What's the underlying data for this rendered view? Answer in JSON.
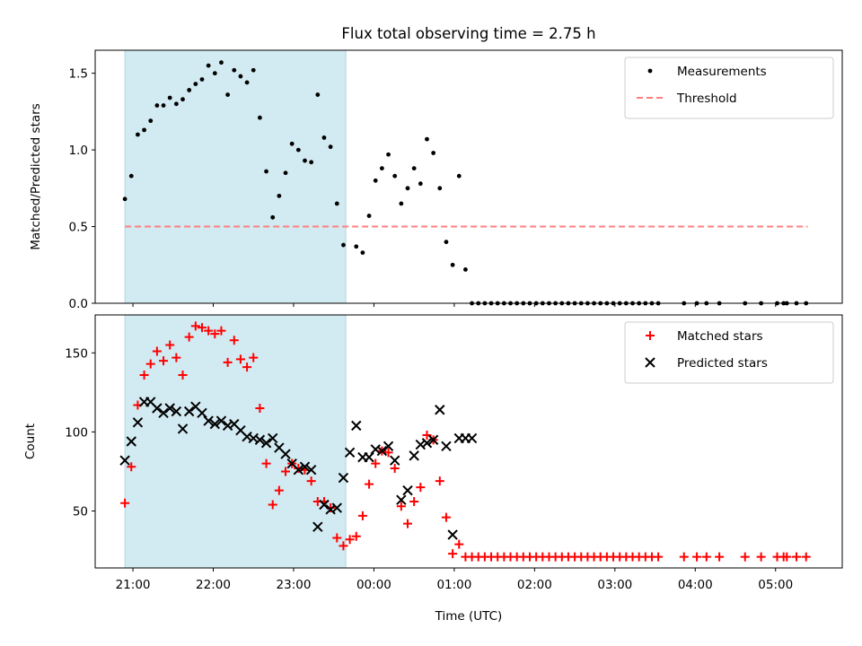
{
  "chart_data": {
    "title": "Flux total observing time = 2.75 h",
    "xlabel": "Time (UTC)",
    "shaded_interval_hours": [
      20.9,
      23.65
    ],
    "shade_color": "#add8e6",
    "x_ticks": [
      {
        "t": 21,
        "label": "21:00"
      },
      {
        "t": 22,
        "label": "22:00"
      },
      {
        "t": 23,
        "label": "23:00"
      },
      {
        "t": 24,
        "label": "00:00"
      },
      {
        "t": 25,
        "label": "01:00"
      },
      {
        "t": 26,
        "label": "02:00"
      },
      {
        "t": 27,
        "label": "03:00"
      },
      {
        "t": 28,
        "label": "04:00"
      },
      {
        "t": 29,
        "label": "05:00"
      }
    ],
    "x_range_hours": [
      20.53,
      29.83
    ],
    "panels": [
      {
        "type": "scatter",
        "ylabel": "Matched/Predicted stars",
        "ylim": [
          0,
          1.65
        ],
        "y_ticks": [
          {
            "v": 0,
            "label": "0.0"
          },
          {
            "v": 0.5,
            "label": "0.5"
          },
          {
            "v": 1.0,
            "label": "1.0"
          },
          {
            "v": 1.5,
            "label": "1.5"
          }
        ],
        "series": [
          {
            "name": "Measurements",
            "marker": "dot",
            "color": "#000000",
            "x": [
              20.9,
              20.98,
              21.06,
              21.14,
              21.22,
              21.3,
              21.38,
              21.46,
              21.54,
              21.62,
              21.7,
              21.78,
              21.86,
              21.94,
              22.02,
              22.1,
              22.18,
              22.26,
              22.34,
              22.42,
              22.5,
              22.58,
              22.66,
              22.74,
              22.82,
              22.9,
              22.98,
              23.06,
              23.14,
              23.22,
              23.3,
              23.38,
              23.46,
              23.54,
              23.62,
              23.78,
              23.86,
              23.94,
              24.02,
              24.1,
              24.18,
              24.26,
              24.34,
              24.42,
              24.5,
              24.58,
              24.66,
              24.74,
              24.82,
              24.9,
              24.98,
              25.06,
              25.14,
              25.22,
              25.3,
              25.38,
              25.46,
              25.54,
              25.62,
              25.7,
              25.78,
              25.86,
              25.94,
              26.02,
              26.1,
              26.18,
              26.26,
              26.34,
              26.42,
              26.5,
              26.58,
              26.66,
              26.74,
              26.82,
              26.9,
              26.98,
              27.06,
              27.14,
              27.22,
              27.3,
              27.38,
              27.46,
              27.54,
              27.86,
              28.02,
              28.14,
              28.3,
              28.62,
              28.82,
              29.02,
              29.1,
              29.14,
              29.26,
              29.38
            ],
            "y": [
              0.68,
              0.83,
              1.1,
              1.13,
              1.19,
              1.29,
              1.29,
              1.34,
              1.3,
              1.33,
              1.39,
              1.43,
              1.46,
              1.55,
              1.5,
              1.57,
              1.36,
              1.52,
              1.48,
              1.44,
              1.52,
              1.21,
              0.86,
              0.56,
              0.7,
              0.85,
              1.04,
              1.0,
              0.93,
              0.92,
              1.36,
              1.08,
              1.02,
              0.65,
              0.38,
              0.37,
              0.33,
              0.57,
              0.8,
              0.88,
              0.97,
              0.83,
              0.65,
              0.75,
              0.88,
              0.78,
              1.07,
              0.98,
              0.75,
              0.4,
              0.25,
              0.83,
              0.22,
              0,
              0,
              0,
              0,
              0,
              0,
              0,
              0,
              0,
              0,
              0,
              0,
              0,
              0,
              0,
              0,
              0,
              0,
              0,
              0,
              0,
              0,
              0,
              0,
              0,
              0,
              0,
              0,
              0,
              0,
              0,
              0,
              0,
              0,
              0,
              0,
              0,
              0,
              0,
              0,
              0
            ]
          },
          {
            "name": "Threshold",
            "marker": "dashed-line",
            "color": "#ff7f7f",
            "x": [
              20.9,
              29.4
            ],
            "y": [
              0.5,
              0.5
            ]
          }
        ]
      },
      {
        "type": "scatter",
        "ylabel": "Count",
        "ylim": [
          14,
          174
        ],
        "y_ticks": [
          {
            "v": 50,
            "label": "50"
          },
          {
            "v": 100,
            "label": "100"
          },
          {
            "v": 150,
            "label": "150"
          }
        ],
        "series": [
          {
            "name": "Matched stars",
            "marker": "plus",
            "color": "#ff0000",
            "x": [
              20.9,
              20.98,
              21.06,
              21.14,
              21.22,
              21.3,
              21.38,
              21.46,
              21.54,
              21.62,
              21.7,
              21.78,
              21.86,
              21.94,
              22.02,
              22.1,
              22.18,
              22.26,
              22.34,
              22.42,
              22.5,
              22.58,
              22.66,
              22.74,
              22.82,
              22.9,
              22.98,
              23.06,
              23.14,
              23.22,
              23.3,
              23.38,
              23.46,
              23.54,
              23.62,
              23.7,
              23.78,
              23.86,
              23.94,
              24.02,
              24.1,
              24.18,
              24.26,
              24.34,
              24.42,
              24.5,
              24.58,
              24.66,
              24.74,
              24.82,
              24.9,
              24.98,
              25.06,
              25.14,
              25.22,
              25.3,
              25.38,
              25.46,
              25.54,
              25.62,
              25.7,
              25.78,
              25.86,
              25.94,
              26.02,
              26.1,
              26.18,
              26.26,
              26.34,
              26.42,
              26.5,
              26.58,
              26.66,
              26.74,
              26.82,
              26.9,
              26.98,
              27.06,
              27.14,
              27.22,
              27.3,
              27.38,
              27.46,
              27.54,
              27.86,
              28.02,
              28.14,
              28.3,
              28.62,
              28.82,
              29.02,
              29.1,
              29.14,
              29.26,
              29.38
            ],
            "y": [
              55,
              78,
              117,
              136,
              143,
              151,
              145,
              155,
              147,
              136,
              160,
              167,
              166,
              164,
              162,
              164,
              144,
              158,
              146,
              141,
              147,
              115,
              80,
              54,
              63,
              75,
              80,
              77,
              76,
              69,
              56,
              56,
              52,
              33,
              28,
              32,
              34,
              47,
              67,
              80,
              88,
              87,
              77,
              53,
              42,
              56,
              65,
              98,
              95,
              69,
              46,
              23,
              29,
              21,
              21,
              21,
              21,
              21,
              21,
              21,
              21,
              21,
              21,
              21,
              21,
              21,
              21,
              21,
              21,
              21,
              21,
              21,
              21,
              21,
              21,
              21,
              21,
              21,
              21,
              21,
              21,
              21,
              21,
              21,
              21,
              21,
              21,
              21,
              21,
              21,
              21,
              21,
              21,
              21,
              21
            ]
          },
          {
            "name": "Predicted stars",
            "marker": "cross",
            "color": "#000000",
            "x": [
              20.9,
              20.98,
              21.06,
              21.14,
              21.22,
              21.3,
              21.38,
              21.46,
              21.54,
              21.62,
              21.7,
              21.78,
              21.86,
              21.94,
              22.02,
              22.1,
              22.18,
              22.26,
              22.34,
              22.42,
              22.5,
              22.58,
              22.66,
              22.74,
              22.82,
              22.9,
              22.98,
              23.06,
              23.14,
              23.22,
              23.3,
              23.38,
              23.46,
              23.54,
              23.62,
              23.7,
              23.78,
              23.86,
              23.94,
              24.02,
              24.1,
              24.18,
              24.26,
              24.34,
              24.42,
              24.5,
              24.58,
              24.66,
              24.74,
              24.82,
              24.9,
              24.98,
              25.06,
              25.14,
              25.22
            ],
            "y": [
              82,
              94,
              106,
              119,
              119,
              115,
              112,
              115,
              113,
              102,
              113,
              116,
              112,
              107,
              105,
              107,
              104,
              105,
              101,
              97,
              96,
              95,
              93,
              96,
              90,
              86,
              80,
              76,
              78,
              76,
              40,
              54,
              51,
              52,
              71,
              87,
              104,
              84,
              84,
              89,
              88,
              91,
              82,
              57,
              63,
              85,
              92,
              93,
              95,
              114,
              91,
              35,
              96,
              96,
              96
            ]
          }
        ]
      }
    ]
  }
}
